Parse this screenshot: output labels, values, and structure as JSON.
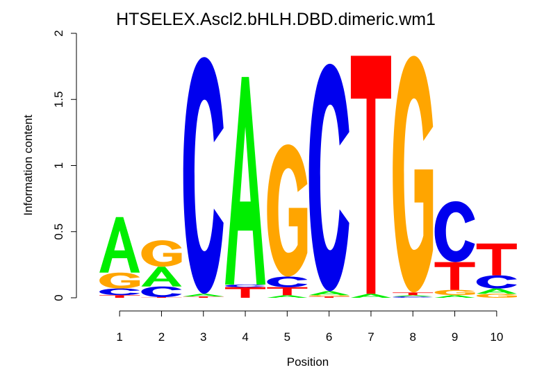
{
  "chart_data": {
    "type": "sequence_logo",
    "title": "HTSELEX.Ascl2.bHLH.DBD.dimeric.wm1",
    "xlabel": "Position",
    "ylabel": "Information content",
    "ylim": [
      0,
      2
    ],
    "yticks": [
      "0",
      "0.5",
      "1",
      "1.5",
      "2"
    ],
    "positions": [
      "1",
      "2",
      "3",
      "4",
      "5",
      "6",
      "7",
      "8",
      "9",
      "10"
    ],
    "colors": {
      "A": "#00ee00",
      "C": "#0000ee",
      "G": "#ffa500",
      "T": "#ff0000"
    },
    "stacks": [
      [
        {
          "letter": "T",
          "value": 0.02
        },
        {
          "letter": "C",
          "value": 0.05
        },
        {
          "letter": "G",
          "value": 0.12
        },
        {
          "letter": "A",
          "value": 0.42
        }
      ],
      [
        {
          "letter": "T",
          "value": 0.005
        },
        {
          "letter": "C",
          "value": 0.08
        },
        {
          "letter": "A",
          "value": 0.15
        },
        {
          "letter": "G",
          "value": 0.2
        }
      ],
      [
        {
          "letter": "T",
          "value": 0.01
        },
        {
          "letter": "A",
          "value": 0.02
        },
        {
          "letter": "C",
          "value": 1.79
        }
      ],
      [
        {
          "letter": "T",
          "value": 0.08
        },
        {
          "letter": "C",
          "value": 0.02
        },
        {
          "letter": "A",
          "value": 1.57
        }
      ],
      [
        {
          "letter": "A",
          "value": 0.02
        },
        {
          "letter": "T",
          "value": 0.06
        },
        {
          "letter": "C",
          "value": 0.08
        },
        {
          "letter": "G",
          "value": 1.0
        }
      ],
      [
        {
          "letter": "T",
          "value": 0.01
        },
        {
          "letter": "G",
          "value": 0.01
        },
        {
          "letter": "A",
          "value": 0.03
        },
        {
          "letter": "C",
          "value": 1.72
        }
      ],
      [
        {
          "letter": "A",
          "value": 0.03
        },
        {
          "letter": "T",
          "value": 1.8
        }
      ],
      [
        {
          "letter": "C",
          "value": 0.01
        },
        {
          "letter": "A",
          "value": 0.01
        },
        {
          "letter": "T",
          "value": 0.02
        },
        {
          "letter": "G",
          "value": 1.79
        }
      ],
      [
        {
          "letter": "A",
          "value": 0.02
        },
        {
          "letter": "G",
          "value": 0.04
        },
        {
          "letter": "T",
          "value": 0.21
        },
        {
          "letter": "C",
          "value": 0.46
        }
      ],
      [
        {
          "letter": "G",
          "value": 0.03
        },
        {
          "letter": "A",
          "value": 0.04
        },
        {
          "letter": "C",
          "value": 0.1
        },
        {
          "letter": "T",
          "value": 0.24
        }
      ]
    ]
  }
}
